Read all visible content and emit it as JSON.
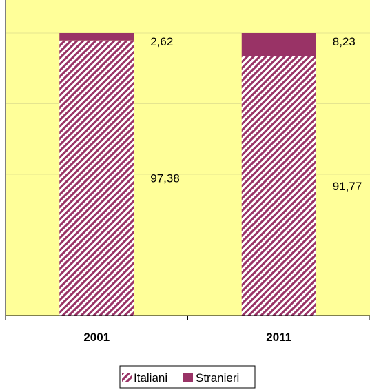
{
  "chart_data": {
    "type": "bar",
    "stacked": true,
    "percent_stacked": true,
    "categories": [
      "2001",
      "2011"
    ],
    "series": [
      {
        "name": "Italiani",
        "values": [
          97.38,
          91.77
        ],
        "labels": [
          "97,38",
          "91,77"
        ],
        "color": "#993366",
        "pattern": "diagonal-stripes"
      },
      {
        "name": "Stranieri",
        "values": [
          2.62,
          8.23
        ],
        "labels": [
          "2,62",
          "8,23"
        ],
        "color": "#993366",
        "pattern": "solid"
      }
    ],
    "ylim": [
      0,
      100
    ],
    "gridlines": "horizontal, hidden behind bars",
    "legend_position": "bottom",
    "plot_background": "#FFFF99",
    "title": "",
    "xlabel": "",
    "ylabel": ""
  }
}
